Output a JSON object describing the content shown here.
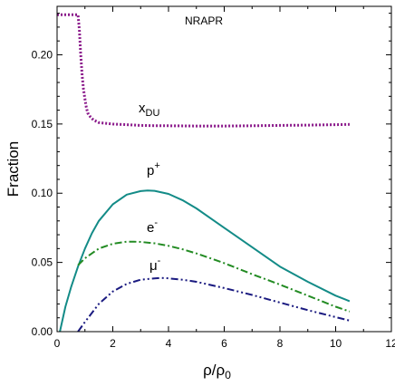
{
  "chart_data": {
    "type": "line",
    "title": "NRAPR",
    "xlabel": "ρ/ρ",
    "xlabel_sub": "0",
    "ylabel": "Fraction",
    "xlim": [
      0,
      12
    ],
    "ylim": [
      0,
      0.235
    ],
    "xticks": [
      0,
      2,
      4,
      6,
      8,
      10,
      12
    ],
    "xtick_labels": [
      "0",
      "2",
      "4",
      "6",
      "8",
      "10",
      "12"
    ],
    "yticks": [
      0.0,
      0.05,
      0.1,
      0.15,
      0.2
    ],
    "ytick_labels": [
      "0.00",
      "0.05",
      "0.10",
      "0.15",
      "0.20"
    ],
    "grid": false,
    "series": [
      {
        "name": "xDU",
        "label_main": "x",
        "label_sub": "DU",
        "color": "#8B1A8B",
        "style": "dotted",
        "x": [
          0.0,
          0.5,
          0.75,
          0.8,
          0.85,
          0.9,
          0.95,
          1.0,
          1.05,
          1.1,
          1.2,
          1.3,
          1.5,
          1.75,
          2.0,
          2.5,
          3.0,
          3.5,
          4.0,
          5.0,
          6.0,
          7.0,
          8.0,
          9.0,
          10.0,
          10.5
        ],
        "values": [
          0.229,
          0.229,
          0.229,
          0.218,
          0.2,
          0.185,
          0.175,
          0.168,
          0.162,
          0.158,
          0.155,
          0.153,
          0.151,
          0.1505,
          0.15,
          0.1495,
          0.149,
          0.1488,
          0.1487,
          0.1485,
          0.1485,
          0.1487,
          0.149,
          0.1492,
          0.1495,
          0.1497
        ]
      },
      {
        "name": "p+",
        "label_main": "p",
        "label_sup": "+",
        "color": "#138B87",
        "style": "solid",
        "x": [
          0.1,
          0.3,
          0.5,
          0.75,
          1.0,
          1.25,
          1.5,
          2.0,
          2.5,
          3.0,
          3.25,
          3.5,
          4.0,
          4.5,
          5.0,
          5.5,
          6.0,
          7.0,
          8.0,
          9.0,
          10.0,
          10.5
        ],
        "values": [
          0.0,
          0.018,
          0.032,
          0.047,
          0.06,
          0.071,
          0.08,
          0.092,
          0.099,
          0.1015,
          0.102,
          0.1017,
          0.0995,
          0.095,
          0.089,
          0.082,
          0.075,
          0.061,
          0.047,
          0.036,
          0.026,
          0.022
        ]
      },
      {
        "name": "e-",
        "label_main": "e",
        "label_sup": "-",
        "color": "#238B23",
        "style": "dashdot",
        "x": [
          0.75,
          1.0,
          1.5,
          2.0,
          2.5,
          2.75,
          3.0,
          3.5,
          4.0,
          4.5,
          5.0,
          6.0,
          7.0,
          8.0,
          9.0,
          10.0,
          10.5
        ],
        "values": [
          0.048,
          0.053,
          0.06,
          0.0635,
          0.065,
          0.065,
          0.0648,
          0.0638,
          0.062,
          0.0595,
          0.0565,
          0.0495,
          0.0415,
          0.034,
          0.026,
          0.018,
          0.0145
        ]
      },
      {
        "name": "μ-",
        "label_main": "μ",
        "label_sup": "-",
        "color": "#1A1A80",
        "style": "dashdotdot",
        "x": [
          0.75,
          1.0,
          1.5,
          2.0,
          2.5,
          3.0,
          3.5,
          3.75,
          4.0,
          4.5,
          5.0,
          6.0,
          7.0,
          8.0,
          9.0,
          10.0,
          10.5
        ],
        "values": [
          0.0,
          0.007,
          0.02,
          0.029,
          0.0345,
          0.0375,
          0.0385,
          0.0388,
          0.0385,
          0.0375,
          0.036,
          0.0315,
          0.0265,
          0.021,
          0.0155,
          0.0105,
          0.008
        ]
      }
    ]
  }
}
